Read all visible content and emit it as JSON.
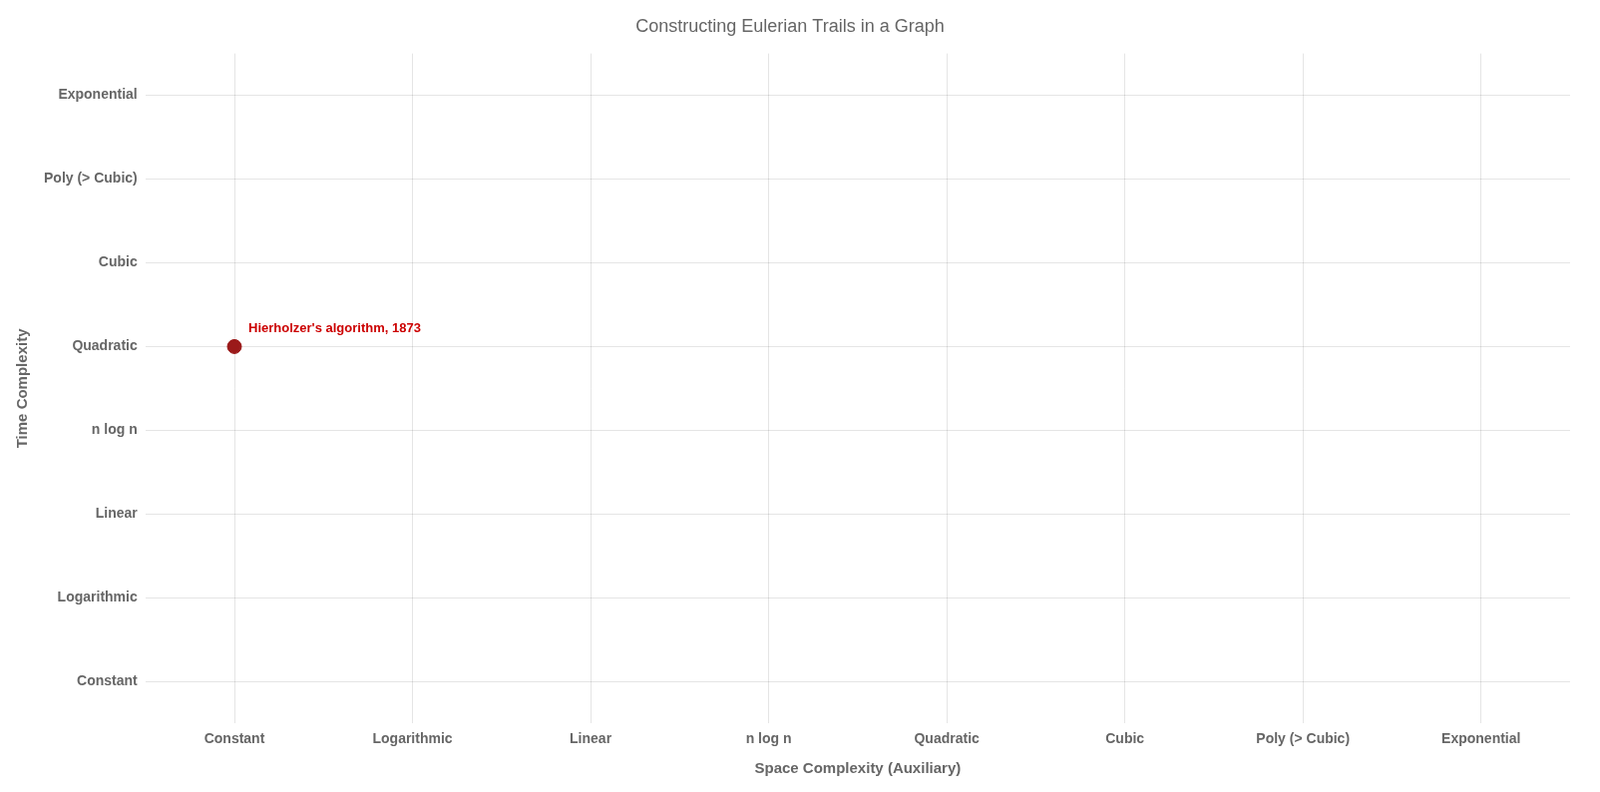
{
  "chart_data": {
    "type": "scatter",
    "title": "Constructing Eulerian Trails in a Graph",
    "xlabel": "Space Complexity (Auxiliary)",
    "ylabel": "Time Complexity",
    "x_categories": [
      "Constant",
      "Logarithmic",
      "Linear",
      "n log n",
      "Quadratic",
      "Cubic",
      "Poly (> Cubic)",
      "Exponential"
    ],
    "y_categories": [
      "Constant",
      "Logarithmic",
      "Linear",
      "n log n",
      "Quadratic",
      "Cubic",
      "Poly (> Cubic)",
      "Exponential"
    ],
    "points": [
      {
        "x": "Constant",
        "y": "Quadratic",
        "color": "#9b1a1a"
      }
    ],
    "annotations": [
      {
        "text": "Hierholzer's algorithm, 1873",
        "x": "Constant",
        "y": "Quadratic",
        "color": "#cc0000"
      }
    ],
    "grid": true
  }
}
